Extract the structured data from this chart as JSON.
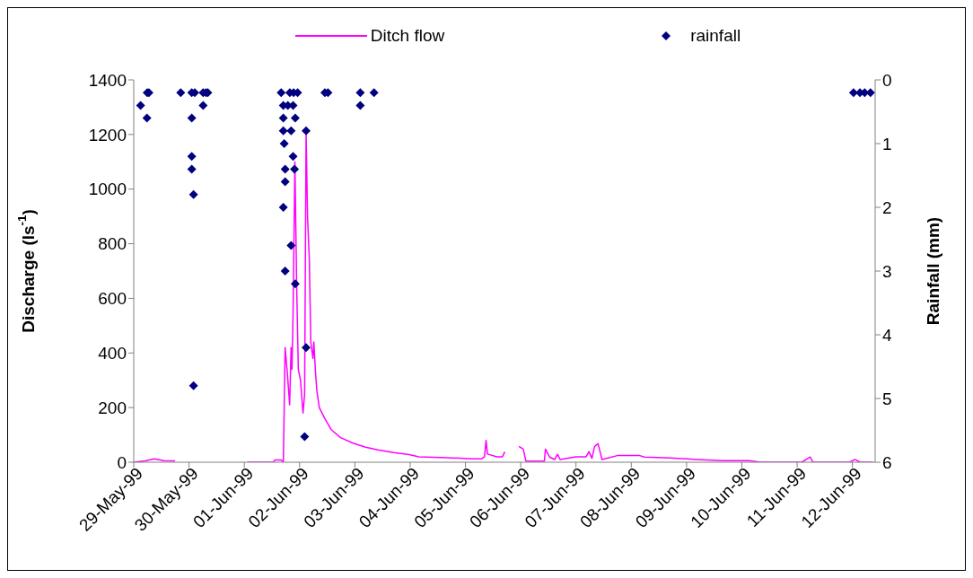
{
  "chart_data": {
    "type": "line",
    "xlabel": null,
    "ylabel": "Discharge (ls$^{-1}$)",
    "y2label": "Rainfall (mm)",
    "xlim": [
      "1999-05-29T21:00",
      "1999-06-13T03:00"
    ],
    "xticks": [
      {
        "value": "1999-05-29T21:00",
        "label": "29-May-99"
      },
      {
        "value": "1999-05-30T22:30",
        "label": "30-May-99"
      },
      {
        "value": "1999-06-01T00:00",
        "label": "01-Jun-99"
      },
      {
        "value": "1999-06-02T01:30",
        "label": "02-Jun-99"
      },
      {
        "value": "1999-06-03T03:00",
        "label": "03-Jun-99"
      },
      {
        "value": "1999-06-04T04:30",
        "label": "04-Jun-99"
      },
      {
        "value": "1999-06-05T06:00",
        "label": "05-Jun-99"
      },
      {
        "value": "1999-06-06T07:30",
        "label": "06-Jun-99"
      },
      {
        "value": "1999-06-07T09:00",
        "label": "07-Jun-99"
      },
      {
        "value": "1999-06-08T10:30",
        "label": "08-Jun-99"
      },
      {
        "value": "1999-06-09T12:00",
        "label": "09-Jun-99"
      },
      {
        "value": "1999-06-10T13:30",
        "label": "10-Jun-99"
      },
      {
        "value": "1999-06-11T15:00",
        "label": "11-Jun-99"
      },
      {
        "value": "1999-06-12T16:30",
        "label": "12-Jun-99"
      }
    ],
    "ylim": [
      0,
      1400
    ],
    "yticks": [
      0,
      200,
      400,
      600,
      800,
      1000,
      1200,
      1400
    ],
    "y2lim": [
      6,
      0
    ],
    "y2ticks": [
      0,
      1,
      2,
      3,
      4,
      5,
      6
    ],
    "grid": false,
    "legend": "top",
    "series": [
      {
        "name": "Ditch flow",
        "color": "#ff00ff",
        "marker": "none",
        "x": [
          "1999-05-29T21:00",
          "1999-05-30T02:10",
          "1999-05-30T06:30",
          "1999-05-30T10:50",
          "1999-05-30T16:05",
          "1999-05-31T12:00",
          "1999-06-01T01:30",
          "1999-06-01T13:25",
          "1999-06-01T14:05",
          "1999-06-01T17:00",
          "1999-06-01T18:00",
          "1999-06-01T18:50",
          "1999-06-01T19:55",
          "1999-06-01T20:55",
          "1999-06-01T21:35",
          "1999-06-01T22:00",
          "1999-06-01T22:30",
          "1999-06-01T23:20",
          "1999-06-02T00:10",
          "1999-06-02T00:55",
          "1999-06-02T01:55",
          "1999-06-02T03:05",
          "1999-06-02T03:50",
          "1999-06-02T04:30",
          "1999-06-02T05:10",
          "1999-06-02T06:00",
          "1999-06-02T06:40",
          "1999-06-02T07:40",
          "1999-06-02T08:05",
          "1999-06-02T08:55",
          "1999-06-02T09:30",
          "1999-06-02T10:35",
          "1999-06-02T13:10",
          "1999-06-02T16:00",
          "1999-06-02T20:25",
          "1999-06-03T02:10",
          "1999-06-03T07:55",
          "1999-06-03T13:40",
          "1999-06-03T20:55",
          "1999-06-04T04:05",
          "1999-06-04T08:30",
          "1999-06-04T18:35",
          "1999-06-05T03:10",
          "1999-06-05T08:50",
          "1999-06-05T13:20",
          "1999-06-05T14:50",
          "1999-06-05T15:30",
          "1999-06-05T16:10",
          "1999-06-05T20:30",
          "1999-06-05T23:05",
          "1999-06-06T00:10",
          "1999-06-06T04:00",
          "1999-06-06T06:40",
          "1999-06-06T08:40",
          "1999-06-06T09:55",
          "1999-06-06T18:25",
          "1999-06-06T18:55",
          "1999-06-06T20:50",
          "1999-06-06T23:10",
          "1999-06-07T00:30",
          "1999-06-07T01:40",
          "1999-06-07T08:55",
          "1999-06-07T13:40",
          "1999-06-07T15:00",
          "1999-06-07T16:20",
          "1999-06-07T17:35",
          "1999-06-07T19:10",
          "1999-06-07T21:00",
          "1999-06-08T04:25",
          "1999-06-08T14:05",
          "1999-06-08T16:30",
          "1999-06-09T04:35",
          "1999-06-09T16:40",
          "1999-06-10T04:55",
          "1999-06-10T17:00",
          "1999-06-10T22:00",
          "1999-06-11T17:10",
          "1999-06-11T21:05",
          "1999-06-11T22:15",
          "1999-06-12T15:15",
          "1999-06-12T17:40",
          "1999-06-12T20:05",
          "1999-06-13T02:05"
        ],
        "values": [
          0,
          5,
          12,
          6,
          5,
          null,
          0,
          0,
          8,
          8,
          0,
          420,
          320,
          210,
          420,
          340,
          545,
          1100,
          640,
          340,
          300,
          180,
          250,
          1210,
          900,
          740,
          440,
          380,
          440,
          320,
          260,
          200,
          160,
          120,
          90,
          70,
          55,
          45,
          35,
          28,
          20,
          17,
          15,
          12,
          12,
          20,
          80,
          30,
          20,
          20,
          38,
          null,
          58,
          48,
          4,
          4,
          48,
          19,
          10,
          29,
          10,
          20,
          20,
          39,
          14,
          58,
          68,
          10,
          25,
          25,
          19,
          16,
          10,
          6,
          6,
          0,
          0,
          19,
          0,
          0,
          10,
          0,
          0
        ]
      },
      {
        "name": "rainfall",
        "type": "scatter",
        "color": "#000080",
        "marker": "diamond",
        "axis": "y2",
        "x": [
          "1999-05-30T00:10",
          "1999-05-30T03:12",
          "1999-05-30T04:00",
          "1999-05-30T03:05",
          "1999-05-30T18:40",
          "1999-05-30T23:45",
          "1999-05-31T01:10",
          "1999-05-30T23:45",
          "1999-05-30T23:45",
          "1999-05-30T23:45",
          "1999-05-31T00:35",
          "1999-05-31T00:35",
          "1999-05-31T05:00",
          "1999-05-31T06:20",
          "1999-05-31T07:10",
          "1999-05-31T05:00",
          "1999-06-01T17:00",
          "1999-06-01T21:00",
          "1999-06-01T22:45",
          "1999-06-02T00:35",
          "1999-06-01T18:00",
          "1999-06-01T20:05",
          "1999-06-01T22:30",
          "1999-06-01T18:00",
          "1999-06-01T23:30",
          "1999-06-01T18:00",
          "1999-06-01T21:35",
          "1999-06-02T04:30",
          "1999-06-01T18:25",
          "1999-06-01T22:30",
          "1999-06-01T18:50",
          "1999-06-01T23:10",
          "1999-06-01T18:50",
          "1999-06-01T18:00",
          "1999-06-01T21:35",
          "1999-06-01T18:50",
          "1999-06-01T23:30",
          "1999-06-02T04:30",
          "1999-06-02T03:50",
          "1999-06-02T13:10",
          "1999-06-02T14:35",
          "1999-06-03T05:30",
          "1999-06-03T05:30",
          "1999-06-03T11:50",
          "1999-06-12T17:00",
          "1999-06-12T20:00",
          "1999-06-12T22:10",
          "1999-06-13T00:50"
        ],
        "values": [
          0.4,
          0.2,
          0.2,
          0.6,
          0.2,
          0.2,
          0.2,
          0.6,
          1.2,
          1.4,
          1.8,
          4.8,
          0.2,
          0.2,
          0.2,
          0.4,
          0.2,
          0.2,
          0.2,
          0.2,
          0.4,
          0.4,
          0.4,
          0.6,
          0.6,
          0.8,
          0.8,
          0.8,
          1.0,
          1.2,
          1.4,
          1.4,
          1.6,
          2.0,
          2.6,
          3.0,
          3.2,
          4.2,
          5.6,
          0.2,
          0.2,
          0.2,
          0.4,
          0.2,
          0.2,
          0.2,
          0.2,
          0.2
        ]
      }
    ]
  }
}
